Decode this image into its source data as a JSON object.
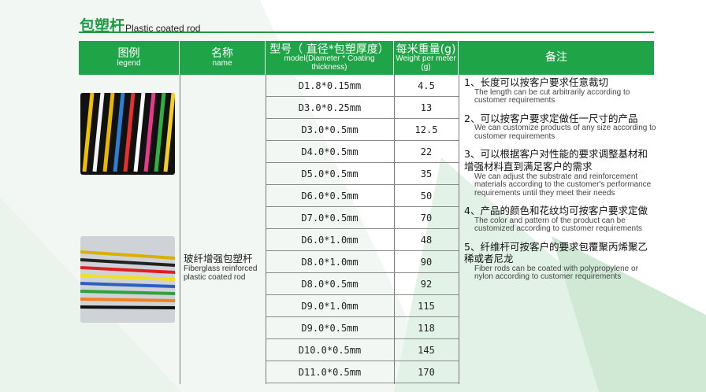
{
  "title": {
    "zh": "包塑杆",
    "en": "Plastic coated rod"
  },
  "header": [
    {
      "zh": "图例",
      "en": "legend"
    },
    {
      "zh": "名称",
      "en": "name"
    },
    {
      "zh": "型号（ 直径*包塑厚度）",
      "en": "model(Diameter * Coating thickness)"
    },
    {
      "zh": "每米重量(g)",
      "en": "Weight per meter (g)"
    },
    {
      "zh": "备注",
      "en": ""
    }
  ],
  "product_name": {
    "zh": "玻纤增强包塑杆",
    "en": "Fiberglass reinforced plastic coated rod"
  },
  "rows": [
    {
      "model": "D1.8*0.15mm",
      "weight": "4.5"
    },
    {
      "model": "D3.0*0.25mm",
      "weight": "13"
    },
    {
      "model": "D3.0*0.5mm",
      "weight": "12.5"
    },
    {
      "model": "D4.0*0.5mm",
      "weight": "22"
    },
    {
      "model": "D5.0*0.5mm",
      "weight": "35"
    },
    {
      "model": "D6.0*0.5mm",
      "weight": "50"
    },
    {
      "model": "D7.0*0.5mm",
      "weight": "70"
    },
    {
      "model": "D6.0*1.0mm",
      "weight": "48"
    },
    {
      "model": "D8.0*1.0mm",
      "weight": "90"
    },
    {
      "model": "D8.0*0.5mm",
      "weight": "92"
    },
    {
      "model": "D9.0*1.0mm",
      "weight": "115"
    },
    {
      "model": "D9.0*0.5mm",
      "weight": "118"
    },
    {
      "model": "D10.0*0.5mm",
      "weight": "145"
    },
    {
      "model": "D11.0*0.5mm",
      "weight": "170"
    }
  ],
  "notes": [
    {
      "zh": "1、长度可以按客户要求任意裁切",
      "en": "The length can be cut arbitrarily according to customer requirements"
    },
    {
      "zh": "2、可以按客户要求定做任一尺寸的产品",
      "en": "We can customize products of any size according to customer requirements"
    },
    {
      "zh": "3、可以根据客户对性能的要求调整基材和增强材料直到满足客户的需求",
      "en": "We can adjust the substrate and reinforcement materials according to the customer's performance requirements until they meet their needs"
    },
    {
      "zh": "4、产品的颜色和花纹均可按客户要求定做",
      "en": "The color and pattern of the product can be customized according to customer requirements"
    },
    {
      "zh": "5、纤维杆可按客户的要求包覆聚丙烯聚乙稀或者尼龙",
      "en": "Fiber rods can be coated with polypropylene or nylon according to customer requirements"
    }
  ],
  "colors": {
    "accent": "#1fa447",
    "background_tint": "#e6f4ea"
  }
}
